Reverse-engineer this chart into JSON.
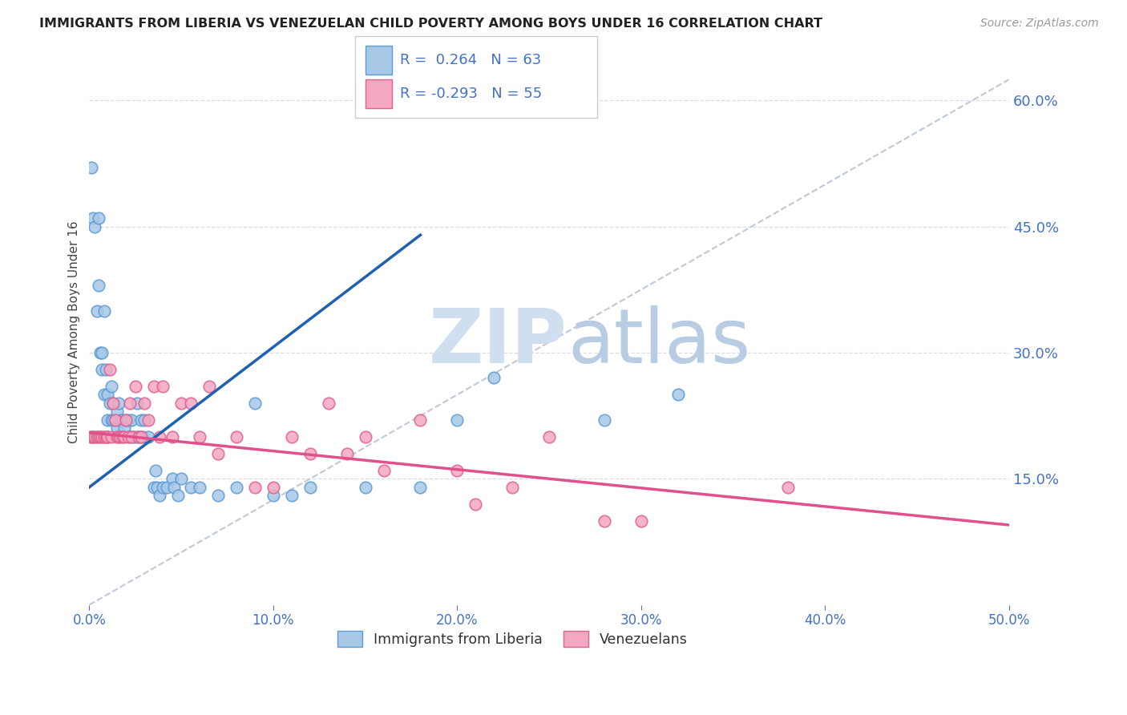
{
  "title": "IMMIGRANTS FROM LIBERIA VS VENEZUELAN CHILD POVERTY AMONG BOYS UNDER 16 CORRELATION CHART",
  "source_text": "Source: ZipAtlas.com",
  "ylabel": "Child Poverty Among Boys Under 16",
  "xticklabels": [
    "0.0%",
    "10.0%",
    "20.0%",
    "30.0%",
    "40.0%",
    "50.0%"
  ],
  "ytick_labels": [
    "15.0%",
    "30.0%",
    "45.0%",
    "60.0%"
  ],
  "xlim": [
    0.0,
    0.5
  ],
  "ylim": [
    0.0,
    0.65
  ],
  "yticks": [
    0.15,
    0.3,
    0.45,
    0.6
  ],
  "xticks": [
    0.0,
    0.1,
    0.2,
    0.3,
    0.4,
    0.5
  ],
  "legend_label1": "Immigrants from Liberia",
  "legend_label2": "Venezuelans",
  "R1": "0.264",
  "N1": "63",
  "R2": "-0.293",
  "N2": "55",
  "blue_dot_color": "#a8c8e8",
  "blue_edge_color": "#5b9bd5",
  "pink_dot_color": "#f4a7c0",
  "pink_edge_color": "#e06090",
  "trend_blue": "#2060b0",
  "trend_pink": "#e0508a",
  "dashed_line_color": "#c0c8d8",
  "title_color": "#222222",
  "axis_tick_color": "#4472c4",
  "watermark_color": "#d0dff0",
  "grid_color": "#d8dce8",
  "blue_scatter": [
    [
      0.001,
      0.2
    ],
    [
      0.001,
      0.52
    ],
    [
      0.002,
      0.46
    ],
    [
      0.003,
      0.45
    ],
    [
      0.004,
      0.35
    ],
    [
      0.005,
      0.46
    ],
    [
      0.005,
      0.38
    ],
    [
      0.006,
      0.3
    ],
    [
      0.007,
      0.28
    ],
    [
      0.007,
      0.3
    ],
    [
      0.008,
      0.25
    ],
    [
      0.008,
      0.35
    ],
    [
      0.009,
      0.28
    ],
    [
      0.01,
      0.22
    ],
    [
      0.01,
      0.25
    ],
    [
      0.011,
      0.24
    ],
    [
      0.012,
      0.22
    ],
    [
      0.012,
      0.26
    ],
    [
      0.013,
      0.22
    ],
    [
      0.013,
      0.24
    ],
    [
      0.014,
      0.22
    ],
    [
      0.015,
      0.21
    ],
    [
      0.015,
      0.23
    ],
    [
      0.016,
      0.24
    ],
    [
      0.017,
      0.22
    ],
    [
      0.018,
      0.22
    ],
    [
      0.019,
      0.21
    ],
    [
      0.02,
      0.22
    ],
    [
      0.021,
      0.22
    ],
    [
      0.022,
      0.2
    ],
    [
      0.023,
      0.22
    ],
    [
      0.024,
      0.2
    ],
    [
      0.025,
      0.2
    ],
    [
      0.026,
      0.24
    ],
    [
      0.027,
      0.2
    ],
    [
      0.028,
      0.22
    ],
    [
      0.029,
      0.2
    ],
    [
      0.03,
      0.22
    ],
    [
      0.032,
      0.2
    ],
    [
      0.035,
      0.14
    ],
    [
      0.036,
      0.16
    ],
    [
      0.037,
      0.14
    ],
    [
      0.038,
      0.13
    ],
    [
      0.04,
      0.14
    ],
    [
      0.042,
      0.14
    ],
    [
      0.045,
      0.15
    ],
    [
      0.046,
      0.14
    ],
    [
      0.048,
      0.13
    ],
    [
      0.05,
      0.15
    ],
    [
      0.055,
      0.14
    ],
    [
      0.06,
      0.14
    ],
    [
      0.07,
      0.13
    ],
    [
      0.08,
      0.14
    ],
    [
      0.09,
      0.24
    ],
    [
      0.1,
      0.13
    ],
    [
      0.11,
      0.13
    ],
    [
      0.12,
      0.14
    ],
    [
      0.15,
      0.14
    ],
    [
      0.18,
      0.14
    ],
    [
      0.2,
      0.22
    ],
    [
      0.22,
      0.27
    ],
    [
      0.28,
      0.22
    ],
    [
      0.32,
      0.25
    ]
  ],
  "pink_scatter": [
    [
      0.001,
      0.2
    ],
    [
      0.002,
      0.2
    ],
    [
      0.003,
      0.2
    ],
    [
      0.004,
      0.2
    ],
    [
      0.005,
      0.2
    ],
    [
      0.006,
      0.2
    ],
    [
      0.007,
      0.2
    ],
    [
      0.008,
      0.2
    ],
    [
      0.009,
      0.2
    ],
    [
      0.01,
      0.2
    ],
    [
      0.01,
      0.2
    ],
    [
      0.011,
      0.28
    ],
    [
      0.012,
      0.2
    ],
    [
      0.013,
      0.24
    ],
    [
      0.014,
      0.22
    ],
    [
      0.015,
      0.2
    ],
    [
      0.016,
      0.2
    ],
    [
      0.017,
      0.2
    ],
    [
      0.018,
      0.2
    ],
    [
      0.019,
      0.2
    ],
    [
      0.02,
      0.22
    ],
    [
      0.021,
      0.2
    ],
    [
      0.022,
      0.24
    ],
    [
      0.023,
      0.2
    ],
    [
      0.025,
      0.26
    ],
    [
      0.027,
      0.2
    ],
    [
      0.028,
      0.2
    ],
    [
      0.03,
      0.24
    ],
    [
      0.032,
      0.22
    ],
    [
      0.035,
      0.26
    ],
    [
      0.038,
      0.2
    ],
    [
      0.04,
      0.26
    ],
    [
      0.045,
      0.2
    ],
    [
      0.05,
      0.24
    ],
    [
      0.055,
      0.24
    ],
    [
      0.06,
      0.2
    ],
    [
      0.065,
      0.26
    ],
    [
      0.07,
      0.18
    ],
    [
      0.08,
      0.2
    ],
    [
      0.09,
      0.14
    ],
    [
      0.1,
      0.14
    ],
    [
      0.11,
      0.2
    ],
    [
      0.12,
      0.18
    ],
    [
      0.13,
      0.24
    ],
    [
      0.14,
      0.18
    ],
    [
      0.15,
      0.2
    ],
    [
      0.16,
      0.16
    ],
    [
      0.18,
      0.22
    ],
    [
      0.2,
      0.16
    ],
    [
      0.21,
      0.12
    ],
    [
      0.23,
      0.14
    ],
    [
      0.25,
      0.2
    ],
    [
      0.28,
      0.1
    ],
    [
      0.3,
      0.1
    ],
    [
      0.38,
      0.14
    ]
  ]
}
